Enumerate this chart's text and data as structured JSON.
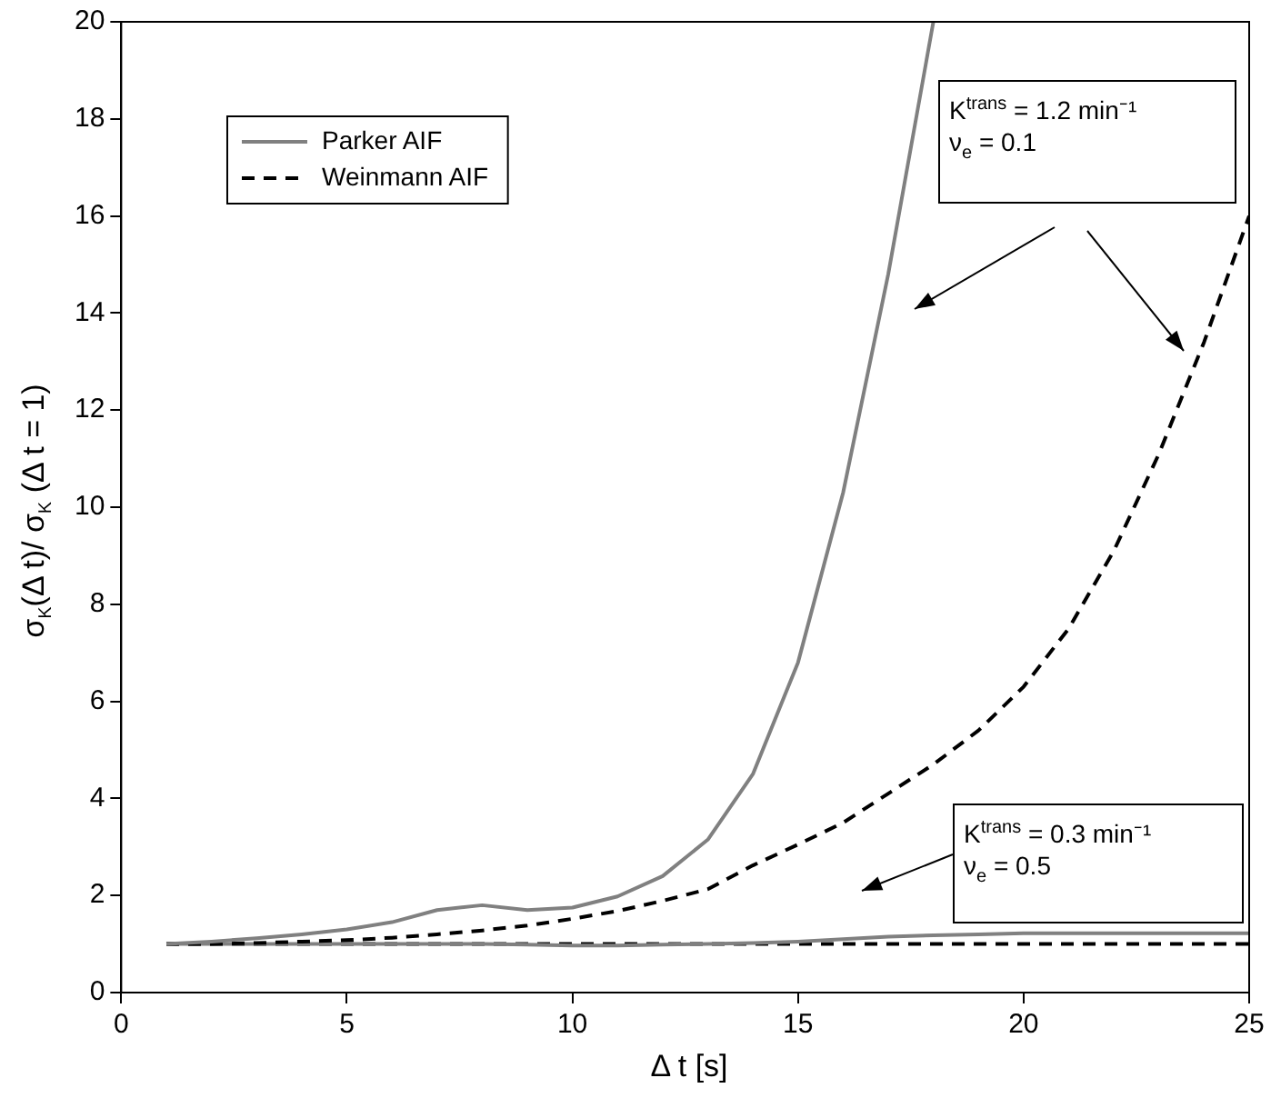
{
  "chart_data": {
    "type": "line",
    "xlabel": "Δ t [s]",
    "ylabel": "σ$_{K}$(Δ t)/ σ$_{K}$ (Δ t = 1)",
    "x": [
      1,
      2,
      3,
      4,
      5,
      6,
      7,
      8,
      9,
      10,
      11,
      12,
      13,
      14,
      15,
      16,
      17,
      18,
      19,
      20,
      21,
      22,
      23,
      24,
      25
    ],
    "series": [
      {
        "name": "Parker AIF",
        "color": "#808080",
        "line_style": "solid",
        "x": [
          1,
          2,
          3,
          4,
          5,
          6,
          7,
          8,
          9,
          10,
          11,
          12,
          13,
          14,
          15,
          16,
          17,
          18
        ],
        "values": [
          1.0,
          1.05,
          1.12,
          1.2,
          1.3,
          1.45,
          1.7,
          1.8,
          1.7,
          1.75,
          1.98,
          2.4,
          3.15,
          4.5,
          6.8,
          10.3,
          14.8,
          20
        ]
      },
      {
        "name": "Weinmann AIF",
        "color": "#000000",
        "line_style": "dashed",
        "values": [
          1.0,
          1.0,
          1.02,
          1.05,
          1.08,
          1.13,
          1.2,
          1.28,
          1.38,
          1.52,
          1.68,
          1.89,
          2.13,
          2.62,
          3.05,
          3.5,
          4.1,
          4.7,
          5.4,
          6.3,
          7.5,
          9.1,
          11.1,
          13.4,
          16.0
        ]
      },
      {
        "color": "#808080",
        "line_style": "solid",
        "values": [
          1.0,
          1.0,
          1.0,
          1.0,
          1.0,
          1.0,
          1.0,
          1.0,
          0.99,
          0.97,
          0.97,
          0.99,
          1.0,
          1.02,
          1.05,
          1.1,
          1.15,
          1.18,
          1.2,
          1.22,
          1.22,
          1.22,
          1.22,
          1.22,
          1.22
        ]
      },
      {
        "color": "#000000",
        "line_style": "dashed",
        "values": [
          1.0,
          1.0,
          1.0,
          1.0,
          1.0,
          1.0,
          1.0,
          1.0,
          1.0,
          1.0,
          1.0,
          1.0,
          1.0,
          1.0,
          1.0,
          1.0,
          1.0,
          1.0,
          1.0,
          1.0,
          1.0,
          1.0,
          1.0,
          1.0,
          1.0
        ]
      }
    ],
    "xlim": [
      0,
      25
    ],
    "xticks": [
      0,
      5,
      10,
      15,
      20,
      25
    ],
    "ylim": [
      0,
      20
    ],
    "yticks": [
      0,
      2,
      4,
      6,
      8,
      10,
      12,
      14,
      16,
      18,
      20
    ],
    "grid": false,
    "legend": "top left",
    "marker": "none",
    "annotations": [
      "K$^{trans}$ = 1.2 min⁻¹\nν$_{e}$ = 0.1",
      "K$^{trans}$ = 0.3 min⁻¹\nν$_{e}$ = 0.5"
    ]
  }
}
